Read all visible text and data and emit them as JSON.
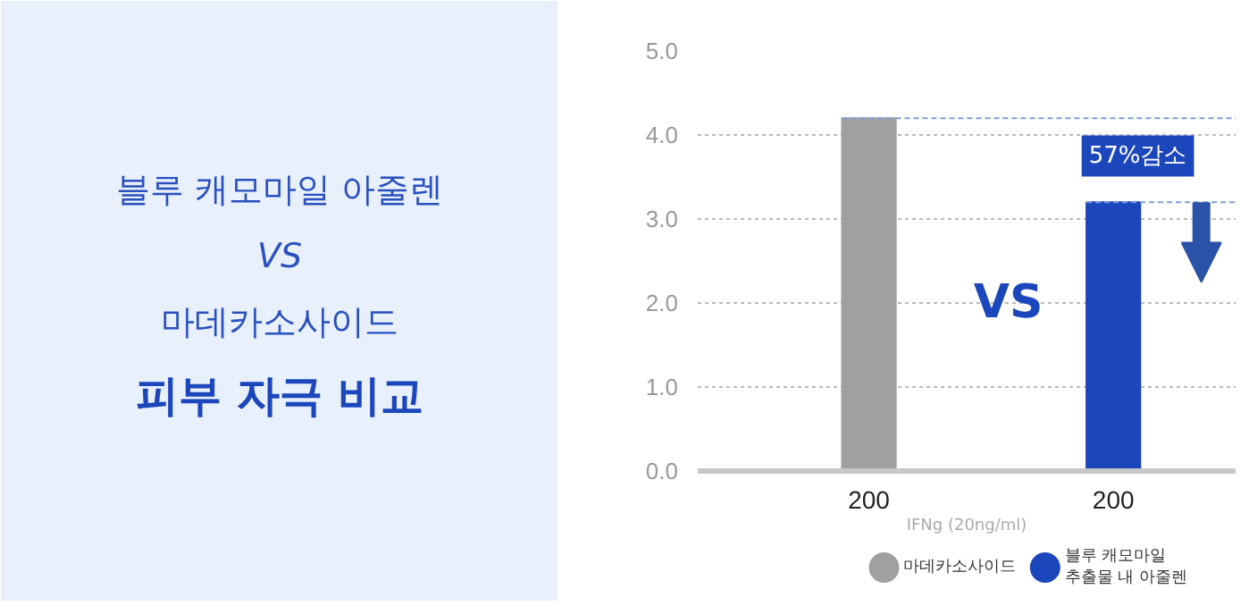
{
  "chart_data": [
    {
      "type": "other",
      "title": "피부 자극 비교",
      "annotations": [
        "블루 캐모마일 아줄렌",
        "VS",
        "마데카소사이드"
      ]
    },
    {
      "type": "bar",
      "categories": [
        "200",
        "200"
      ],
      "xlabel": "IFNg (20ng/ml)",
      "series": [
        {
          "name": "마데카소사이드",
          "color": "#a0a0a0",
          "values": [
            4.2,
            null
          ]
        },
        {
          "name": "블루 캐모마일\n추출물 내 아줄렌",
          "color": "#1c46bb",
          "values": [
            null,
            3.2
          ]
        }
      ],
      "ylim": [
        0,
        5
      ],
      "yticks": [
        {
          "value": 0,
          "label": "0.0"
        },
        {
          "value": 1,
          "label": "1.0"
        },
        {
          "value": 2,
          "label": "2.0"
        },
        {
          "value": 3,
          "label": "3.0"
        },
        {
          "value": 4,
          "label": "4.0"
        },
        {
          "value": 5,
          "label": "5.0"
        }
      ],
      "grid": "y",
      "legend": "bottom",
      "ref_lines": [
        {
          "axis": "y",
          "value": 4.2,
          "color": "#7f9fd6",
          "line_style": "dashed"
        },
        {
          "axis": "y",
          "value": 3.2,
          "color": "#7f9fd6",
          "line_style": "dashed"
        }
      ],
      "annotations": [
        "57%감소",
        "VS"
      ]
    }
  ]
}
